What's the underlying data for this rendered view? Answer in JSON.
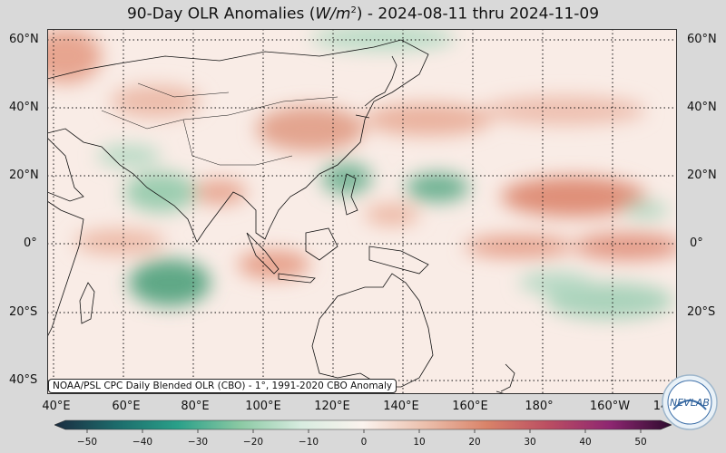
{
  "title_pre": "90-Day OLR Anomalies (",
  "title_unit": "W/m",
  "title_sup": "2",
  "title_post": ") - 2024-08-11 thru 2024-11-09",
  "lat_labels": [
    "60°N",
    "40°N",
    "20°N",
    "0°",
    "20°S",
    "40°S"
  ],
  "lon_labels": [
    "40°E",
    "60°E",
    "80°E",
    "100°E",
    "120°E",
    "140°E",
    "160°E",
    "180°",
    "160°W",
    "14"
  ],
  "credit": "NOAA/PSL CPC Daily Blended OLR (CBO) - 1°, 1991-2020 CBO Anomaly",
  "colorbar": {
    "ticks": [
      "−50",
      "−40",
      "−30",
      "−20",
      "−10",
      "0",
      "10",
      "20",
      "30",
      "40",
      "50"
    ],
    "range": [
      -50,
      50
    ],
    "colors": [
      "#1b2c40",
      "#1c6b6b",
      "#2aa089",
      "#8ac9a3",
      "#d8ece0",
      "#fbf3ee",
      "#ecc0ad",
      "#d98369",
      "#bb4e62",
      "#8e2671",
      "#2d0b2e"
    ]
  },
  "logo_text": "NEVLAB"
}
